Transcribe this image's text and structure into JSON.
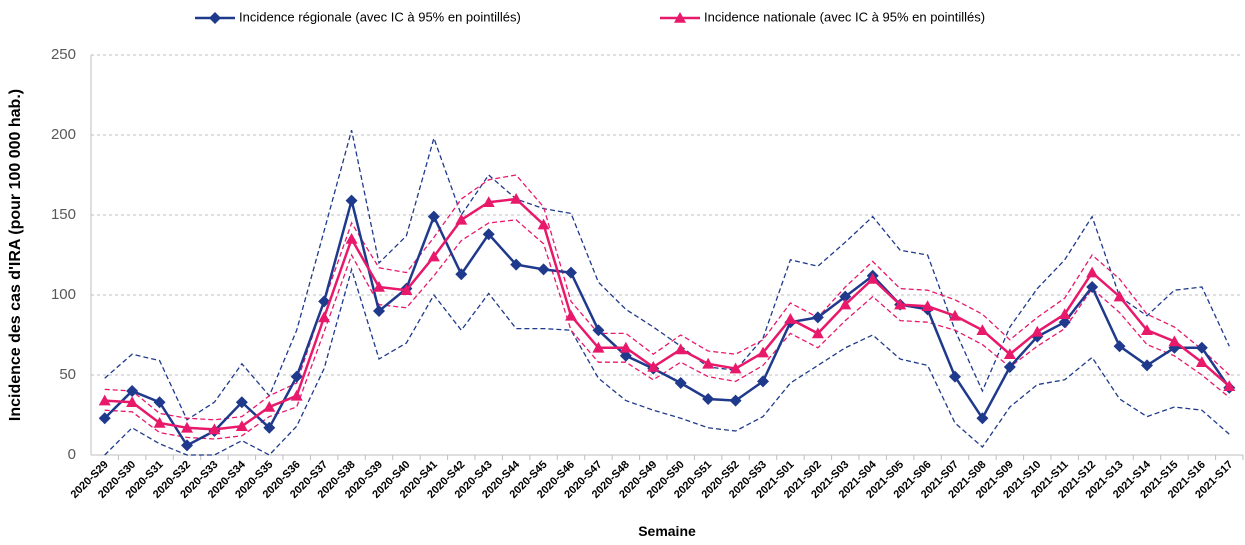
{
  "chart_data": {
    "type": "line",
    "y_label": "Incidence des cas d'IRA (pour 100 000 hab.)",
    "x_label": "Semaine",
    "categories": [
      "2020-S29",
      "2020-S30",
      "2020-S31",
      "2020-S32",
      "2020-S33",
      "2020-S34",
      "2020-S35",
      "2020-S36",
      "2020-S37",
      "2020-S38",
      "2020-S39",
      "2020-S40",
      "2020-S41",
      "2020-S42",
      "2020-S43",
      "2020-S44",
      "2020-S45",
      "2020-S46",
      "2020-S47",
      "2020-S48",
      "2020-S49",
      "2020-S50",
      "2020-S51",
      "2020-S52",
      "2020-S53",
      "2021-S01",
      "2021-S02",
      "2021-S03",
      "2021-S04",
      "2021-S05",
      "2021-S06",
      "2021-S07",
      "2021-S08",
      "2021-S09",
      "2021-S10",
      "2021-S11",
      "2021-S12",
      "2021-S13",
      "2021-S14",
      "2021-S15",
      "2021-S16",
      "2021-S17"
    ],
    "series": [
      {
        "name": "Incidence régionale (avec IC à 95% en pointillés)",
        "color": "#1f3a8c",
        "marker": "diamond",
        "values": [
          23,
          40,
          33,
          6,
          15,
          33,
          17,
          49,
          96,
          159,
          90,
          104,
          149,
          113,
          138,
          119,
          116,
          114,
          78,
          62,
          54,
          45,
          35,
          34,
          46,
          83,
          86,
          99,
          112,
          94,
          91,
          49,
          23,
          55,
          74,
          83,
          105,
          68,
          56,
          67,
          67,
          42
        ],
        "upper": [
          48,
          63,
          59,
          22,
          33,
          57,
          37,
          78,
          140,
          203,
          120,
          137,
          198,
          150,
          175,
          160,
          154,
          151,
          108,
          91,
          80,
          68,
          55,
          53,
          73,
          122,
          118,
          133,
          149,
          128,
          125,
          78,
          40,
          80,
          104,
          122,
          149,
          99,
          87,
          103,
          105,
          68
        ],
        "lower": [
          0,
          17,
          7,
          0,
          0,
          9,
          0,
          18,
          54,
          116,
          60,
          70,
          100,
          78,
          101,
          79,
          79,
          78,
          48,
          34,
          28,
          23,
          17,
          15,
          24,
          45,
          56,
          67,
          75,
          60,
          56,
          20,
          5,
          30,
          44,
          47,
          61,
          35,
          24,
          30,
          28,
          13
        ]
      },
      {
        "name": "Incidence nationale (avec IC à 95% en pointillés)",
        "color": "#e8196a",
        "marker": "triangle",
        "values": [
          34,
          33,
          20,
          17,
          16,
          18,
          30,
          37,
          86,
          135,
          105,
          103,
          124,
          147,
          158,
          160,
          144,
          87,
          67,
          67,
          55,
          66,
          57,
          54,
          64,
          85,
          76,
          94,
          110,
          94,
          93,
          87,
          78,
          63,
          77,
          88,
          114,
          99,
          78,
          71,
          58,
          43
        ],
        "upper": [
          41,
          40,
          26,
          23,
          22,
          24,
          37,
          45,
          96,
          145,
          117,
          114,
          136,
          160,
          172,
          175,
          155,
          96,
          76,
          76,
          63,
          75,
          65,
          63,
          72,
          95,
          86,
          105,
          121,
          104,
          103,
          97,
          88,
          72,
          86,
          98,
          125,
          110,
          88,
          80,
          66,
          50
        ],
        "lower": [
          28,
          27,
          14,
          11,
          10,
          12,
          24,
          30,
          77,
          125,
          94,
          92,
          112,
          134,
          145,
          147,
          132,
          78,
          58,
          58,
          47,
          58,
          49,
          46,
          56,
          76,
          67,
          84,
          99,
          84,
          83,
          78,
          69,
          55,
          68,
          79,
          104,
          89,
          69,
          62,
          50,
          36
        ]
      }
    ],
    "ylim": [
      0,
      250
    ],
    "yticks": [
      0,
      50,
      100,
      150,
      200,
      250
    ],
    "grid": true,
    "legend": "top"
  }
}
